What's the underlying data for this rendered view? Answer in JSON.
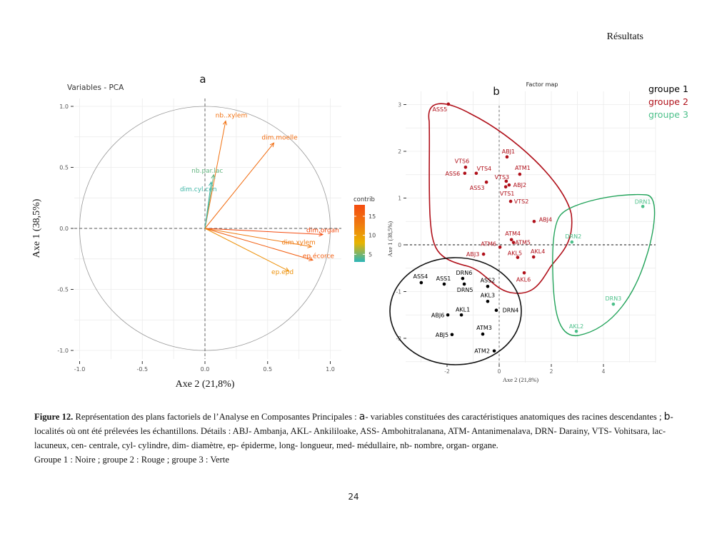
{
  "header": {
    "section": "Résultats"
  },
  "chart_data": [
    {
      "type": "scatter",
      "panel_letter": "a",
      "title": "Variables - PCA",
      "xlabel": "Axe 2 (21,8%)",
      "ylabel": "Axe 1 (38,5%)",
      "xlim": [
        -1.1,
        1.1
      ],
      "ylim": [
        -1.1,
        1.1
      ],
      "xticks": [
        "-1.0",
        "-0.5",
        "0.0",
        "0.5",
        "1.0"
      ],
      "yticks": [
        "1.0",
        "0.5",
        "0.0",
        "-0.5",
        "-1.0"
      ],
      "grid": true,
      "correlation_circle": true,
      "legend": {
        "title": "contrib",
        "ticks": [
          "15",
          "10",
          "5"
        ],
        "range": [
          3,
          18
        ],
        "placement": "right",
        "colors": [
          "#2bb5b8",
          "#e8b400",
          "#f07a10",
          "#f44b10"
        ]
      },
      "arrows": [
        {
          "label": "nb..xylem",
          "x": 0.165,
          "y": 0.88,
          "contrib": 14
        },
        {
          "label": "dim.moelle",
          "x": 0.55,
          "y": 0.7,
          "contrib": 14.5
        },
        {
          "label": "nb.par.lac",
          "x": 0.07,
          "y": 0.44,
          "contrib": 4.5
        },
        {
          "label": "dim.cyl.cen",
          "x": 0.05,
          "y": 0.38,
          "contrib": 3.5
        },
        {
          "label": "dim.organ",
          "x": 0.94,
          "y": -0.05,
          "contrib": 18
        },
        {
          "label": "dim.xylem",
          "x": 0.85,
          "y": -0.15,
          "contrib": 13
        },
        {
          "label": "ep.écorce",
          "x": 0.86,
          "y": -0.26,
          "contrib": 16
        },
        {
          "label": "ep.epd",
          "x": 0.67,
          "y": -0.35,
          "contrib": 11
        }
      ]
    },
    {
      "type": "scatter",
      "panel_letter": "b",
      "title": "Factor map",
      "xlabel": "Axe 2 (21,8%)",
      "ylabel": "Axe 1 (38,5%)",
      "xlim": [
        -3.4,
        6.0
      ],
      "ylim": [
        -2.6,
        3.2
      ],
      "xticks": [
        -2,
        0,
        2,
        4
      ],
      "yticks": [
        3,
        2,
        1,
        0,
        -1,
        -2
      ],
      "grid": true,
      "legend": [
        {
          "label": "groupe 1",
          "color": "#000000"
        },
        {
          "label": "groupe 2",
          "color": "#b0101a"
        },
        {
          "label": "groupe 3",
          "color": "#4cc08a"
        }
      ],
      "points": [
        {
          "label": "ASS5",
          "x": -1.95,
          "y": 3.01,
          "group": 2
        },
        {
          "label": "ABJ1",
          "x": 0.3,
          "y": 1.88,
          "group": 2
        },
        {
          "label": "VTS6",
          "x": -1.29,
          "y": 1.66,
          "group": 2
        },
        {
          "label": "VTS4",
          "x": -0.88,
          "y": 1.53,
          "group": 2
        },
        {
          "label": "ASS6",
          "x": -1.32,
          "y": 1.53,
          "group": 2
        },
        {
          "label": "ATM1",
          "x": 0.79,
          "y": 1.51,
          "group": 2
        },
        {
          "label": "VTS3",
          "x": 0.27,
          "y": 1.36,
          "group": 2
        },
        {
          "label": "ABJ2",
          "x": 0.38,
          "y": 1.28,
          "group": 2
        },
        {
          "label": "ASS3",
          "x": -0.49,
          "y": 1.34,
          "group": 2
        },
        {
          "label": "VTS1",
          "x": 0.25,
          "y": 1.24,
          "group": 2
        },
        {
          "label": "VTS2",
          "x": 0.44,
          "y": 0.93,
          "group": 2
        },
        {
          "label": "ABJ4",
          "x": 1.34,
          "y": 0.5,
          "group": 2
        },
        {
          "label": "ATM4",
          "x": 0.47,
          "y": 0.11,
          "group": 2
        },
        {
          "label": "ATM5",
          "x": 0.55,
          "y": 0.05,
          "group": 2
        },
        {
          "label": "ATM6",
          "x": 0.03,
          "y": -0.05,
          "group": 2
        },
        {
          "label": "ABJ3",
          "x": -0.6,
          "y": -0.2,
          "group": 2
        },
        {
          "label": "AKL5",
          "x": 0.71,
          "y": -0.27,
          "group": 2
        },
        {
          "label": "AKL4",
          "x": 1.32,
          "y": -0.26,
          "group": 2
        },
        {
          "label": "AKL6",
          "x": 0.96,
          "y": -0.6,
          "group": 2
        },
        {
          "label": "DRN1",
          "x": 5.51,
          "y": 0.82,
          "group": 3
        },
        {
          "label": "DRN2",
          "x": 2.79,
          "y": 0.06,
          "group": 3
        },
        {
          "label": "DRN3",
          "x": 4.38,
          "y": -1.27,
          "group": 3
        },
        {
          "label": "AKL2",
          "x": 2.96,
          "y": -1.85,
          "group": 3
        },
        {
          "label": "ASS4",
          "x": -2.99,
          "y": -0.81,
          "group": 1
        },
        {
          "label": "ASS1",
          "x": -2.11,
          "y": -0.84,
          "group": 1
        },
        {
          "label": "DRN6",
          "x": -1.4,
          "y": -0.72,
          "group": 1
        },
        {
          "label": "DRN5",
          "x": -1.34,
          "y": -0.84,
          "group": 1
        },
        {
          "label": "ASS2",
          "x": -0.44,
          "y": -0.89,
          "group": 1
        },
        {
          "label": "AKL3",
          "x": -0.44,
          "y": -1.21,
          "group": 1
        },
        {
          "label": "DRN4",
          "x": -0.11,
          "y": -1.4,
          "group": 1
        },
        {
          "label": "ABJ6",
          "x": -1.97,
          "y": -1.5,
          "group": 1
        },
        {
          "label": "AKL1",
          "x": -1.45,
          "y": -1.5,
          "group": 1
        },
        {
          "label": "ATM3",
          "x": -0.63,
          "y": -1.91,
          "group": 1
        },
        {
          "label": "ABJ5",
          "x": -1.81,
          "y": -1.92,
          "group": 1
        },
        {
          "label": "ATM2",
          "x": -0.19,
          "y": -2.27,
          "group": 1
        }
      ]
    }
  ],
  "caption": {
    "label": "Figure 12.",
    "part1": " Représentation des plans factoriels de l’Analyse en Composantes Principales : ",
    "a_letter": "a",
    "part2": "- variables constituées des caractéristiques anatomiques des racines descendantes ; ",
    "b_letter": "b",
    "part3": "- localités où ont été prélevées les échantillons. Détails : ABJ- Ambanja, AKL- Ankililoake, ASS- Ambohitralanana, ATM- Antanimenalava, DRN- Darainy, VTS- Vohitsara, lac- lacuneux, cen- centrale, cyl- cylindre, dim- diamètre, ep- épiderme, long- longueur, med- médullaire, nb- nombre, organ- organe.",
    "line4": "Groupe 1 : Noire ; groupe 2 : Rouge ; groupe 3 : Verte"
  },
  "page_number": "24"
}
